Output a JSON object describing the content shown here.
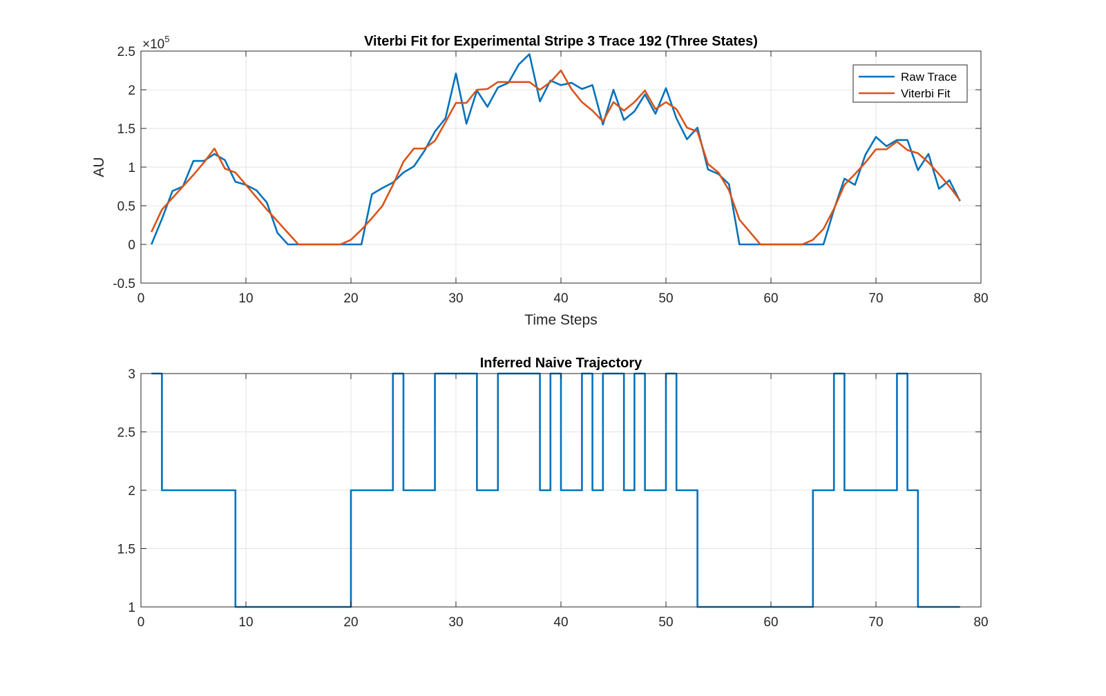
{
  "chart_data": [
    {
      "type": "line",
      "title": "Viterbi Fit for Experimental Stripe 3 Trace 192 (Three States)",
      "xlabel": "Time Steps",
      "ylabel": "AU",
      "y_exponent_label": "×10",
      "y_exponent_power": "5",
      "xlim": [
        0,
        80
      ],
      "ylim": [
        -0.5,
        2.5
      ],
      "xticks": [
        0,
        10,
        20,
        30,
        40,
        50,
        60,
        70,
        80
      ],
      "yticks": [
        -0.5,
        0,
        0.5,
        1,
        1.5,
        2,
        2.5
      ],
      "xtick_labels": [
        "0",
        "10",
        "20",
        "30",
        "40",
        "50",
        "60",
        "70",
        "80"
      ],
      "ytick_labels": [
        "-0.5",
        "0",
        "0.5",
        "1",
        "1.5",
        "2",
        "2.5"
      ],
      "grid": true,
      "legend_position": "top-right",
      "y_scale_note": "values in units of 10^5",
      "series": [
        {
          "name": "Raw Trace",
          "color": "#0072BD",
          "x": [
            1,
            2,
            3,
            4,
            5,
            6,
            7,
            8,
            9,
            10,
            11,
            12,
            13,
            14,
            15,
            16,
            17,
            18,
            19,
            20,
            21,
            22,
            23,
            24,
            25,
            26,
            27,
            28,
            29,
            30,
            31,
            32,
            33,
            34,
            35,
            36,
            37,
            38,
            39,
            40,
            41,
            42,
            43,
            44,
            45,
            46,
            47,
            48,
            49,
            50,
            51,
            52,
            53,
            54,
            55,
            56,
            57,
            58,
            59,
            60,
            61,
            62,
            63,
            64,
            65,
            66,
            67,
            68,
            69,
            70,
            71,
            72,
            73,
            74,
            75,
            76,
            77,
            78
          ],
          "y": [
            0,
            0.33,
            0.69,
            0.75,
            1.08,
            1.08,
            1.17,
            1.09,
            0.81,
            0.77,
            0.7,
            0.54,
            0.15,
            0,
            0,
            0,
            0,
            0,
            0,
            0,
            0,
            0.65,
            0.73,
            0.8,
            0.93,
            1.01,
            1.21,
            1.46,
            1.63,
            2.21,
            1.56,
            1.99,
            1.78,
            2.03,
            2.09,
            2.33,
            2.46,
            1.85,
            2.12,
            2.06,
            2.09,
            2.01,
            2.06,
            1.55,
            2.0,
            1.61,
            1.72,
            1.94,
            1.69,
            2.02,
            1.63,
            1.36,
            1.51,
            0.97,
            0.91,
            0.78,
            0,
            0,
            0,
            0,
            0,
            0,
            0,
            0,
            0,
            0.45,
            0.85,
            0.77,
            1.16,
            1.39,
            1.27,
            1.35,
            1.35,
            0.96,
            1.17,
            0.72,
            0.83,
            0.56
          ]
        },
        {
          "name": "Viterbi Fit",
          "color": "#D95319",
          "x": [
            1,
            2,
            3,
            4,
            5,
            6,
            7,
            8,
            9,
            10,
            11,
            12,
            13,
            14,
            15,
            16,
            17,
            18,
            19,
            20,
            21,
            22,
            23,
            24,
            25,
            26,
            27,
            28,
            29,
            30,
            31,
            32,
            33,
            34,
            35,
            36,
            37,
            38,
            39,
            40,
            41,
            42,
            43,
            44,
            45,
            46,
            47,
            48,
            49,
            50,
            51,
            52,
            53,
            54,
            55,
            56,
            57,
            58,
            59,
            60,
            61,
            62,
            63,
            64,
            65,
            66,
            67,
            68,
            69,
            70,
            71,
            72,
            73,
            74,
            75,
            76,
            77,
            78
          ],
          "y": [
            0.16,
            0.45,
            0.6,
            0.75,
            0.9,
            1.06,
            1.24,
            0.98,
            0.93,
            0.77,
            0.61,
            0.45,
            0.3,
            0.15,
            0,
            0,
            0,
            0,
            0,
            0.06,
            0.19,
            0.34,
            0.5,
            0.77,
            1.07,
            1.24,
            1.24,
            1.34,
            1.58,
            1.83,
            1.83,
            2.0,
            2.01,
            2.1,
            2.1,
            2.1,
            2.1,
            2.0,
            2.1,
            2.25,
            2.01,
            1.84,
            1.73,
            1.59,
            1.84,
            1.73,
            1.84,
            1.99,
            1.75,
            1.84,
            1.75,
            1.51,
            1.46,
            1.04,
            0.93,
            0.7,
            0.32,
            0.16,
            0,
            0,
            0,
            0,
            0,
            0.06,
            0.2,
            0.46,
            0.77,
            0.91,
            1.06,
            1.23,
            1.23,
            1.33,
            1.22,
            1.18,
            1.06,
            0.91,
            0.75,
            0.57
          ]
        }
      ]
    },
    {
      "type": "line",
      "title": "Inferred Naive Trajectory",
      "xlabel": "",
      "ylabel": "",
      "xlim": [
        0,
        80
      ],
      "ylim": [
        1,
        3
      ],
      "xticks": [
        0,
        10,
        20,
        30,
        40,
        50,
        60,
        70,
        80
      ],
      "yticks": [
        1,
        1.5,
        2,
        2.5,
        3
      ],
      "xtick_labels": [
        "0",
        "10",
        "20",
        "30",
        "40",
        "50",
        "60",
        "70",
        "80"
      ],
      "ytick_labels": [
        "1",
        "1.5",
        "2",
        "2.5",
        "3"
      ],
      "grid": true,
      "style": "stairs",
      "series": [
        {
          "name": "",
          "color": "#0072BD",
          "x": [
            1,
            2,
            3,
            4,
            5,
            6,
            7,
            8,
            9,
            10,
            11,
            12,
            13,
            14,
            15,
            16,
            17,
            18,
            19,
            20,
            21,
            22,
            23,
            24,
            25,
            26,
            27,
            28,
            29,
            30,
            31,
            32,
            33,
            34,
            35,
            36,
            37,
            38,
            39,
            40,
            41,
            42,
            43,
            44,
            45,
            46,
            47,
            48,
            49,
            50,
            51,
            52,
            53,
            54,
            55,
            56,
            57,
            58,
            59,
            60,
            61,
            62,
            63,
            64,
            65,
            66,
            67,
            68,
            69,
            70,
            71,
            72,
            73,
            74,
            75,
            76,
            77,
            78
          ],
          "y": [
            3,
            2,
            2,
            2,
            2,
            2,
            2,
            2,
            1,
            1,
            1,
            1,
            1,
            1,
            1,
            1,
            1,
            1,
            1,
            2,
            2,
            2,
            2,
            3,
            2,
            2,
            2,
            3,
            3,
            3,
            3,
            2,
            2,
            3,
            3,
            3,
            3,
            2,
            3,
            2,
            2,
            3,
            2,
            3,
            3,
            2,
            3,
            2,
            2,
            3,
            2,
            2,
            1,
            1,
            1,
            1,
            1,
            1,
            1,
            1,
            1,
            1,
            1,
            2,
            2,
            3,
            2,
            2,
            2,
            2,
            2,
            3,
            2,
            1,
            1,
            1,
            1,
            1
          ]
        }
      ]
    }
  ]
}
